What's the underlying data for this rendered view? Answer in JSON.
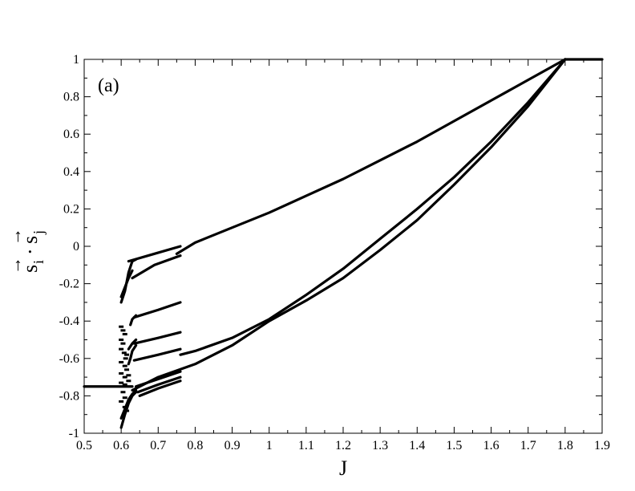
{
  "chart_data": {
    "type": "line",
    "panel_label": "(a)",
    "xlabel": "J",
    "ylabel": "s_i · s_j (vectors)",
    "ylabel_parts": {
      "s": "s",
      "i": "i",
      "dot": "·",
      "j": "j",
      "arrow": "→"
    },
    "xlim": [
      0.5,
      1.9
    ],
    "ylim": [
      -1,
      1
    ],
    "xticks": [
      "0.5",
      "0.6",
      "0.7",
      "0.8",
      "0.9",
      "1",
      "1.1",
      "1.2",
      "1.3",
      "1.4",
      "1.5",
      "1.6",
      "1.7",
      "1.8",
      "1.9"
    ],
    "yticks": [
      "-1",
      "-0.8",
      "-0.6",
      "-0.4",
      "-0.2",
      "0",
      "0.2",
      "0.4",
      "0.6",
      "0.8",
      "1"
    ],
    "grid": false,
    "legend": "none",
    "line_color": "#000000",
    "series": [
      {
        "x": [
          0.5,
          0.6,
          0.62,
          0.63
        ],
        "y": [
          -0.75,
          -0.75,
          -0.75,
          -0.75
        ]
      },
      {
        "x": [
          0.75,
          0.8,
          0.9,
          1.0,
          1.1,
          1.2,
          1.3,
          1.4,
          1.5,
          1.6,
          1.7,
          1.8,
          1.9
        ],
        "y": [
          -0.04,
          0.02,
          0.1,
          0.18,
          0.27,
          0.36,
          0.46,
          0.56,
          0.67,
          0.78,
          0.89,
          1.0,
          1.0
        ]
      },
      {
        "x": [
          0.63,
          0.7,
          0.8,
          0.9,
          1.0,
          1.1,
          1.2,
          1.3,
          1.4,
          1.5,
          1.6,
          1.7,
          1.8
        ],
        "y": [
          -0.77,
          -0.7,
          -0.63,
          -0.53,
          -0.4,
          -0.29,
          -0.17,
          -0.02,
          0.14,
          0.33,
          0.53,
          0.75,
          1.0
        ]
      },
      {
        "x": [
          0.76,
          0.8,
          0.9,
          1.0,
          1.1,
          1.2,
          1.3,
          1.4,
          1.5,
          1.6,
          1.7,
          1.8
        ],
        "y": [
          -0.58,
          -0.56,
          -0.49,
          -0.39,
          -0.26,
          -0.12,
          0.04,
          0.2,
          0.37,
          0.56,
          0.77,
          1.0
        ]
      },
      {
        "x": [
          0.63,
          0.69,
          0.76
        ],
        "y": [
          -0.17,
          -0.1,
          -0.05
        ]
      },
      {
        "x": [
          0.62,
          0.69,
          0.76
        ],
        "y": [
          -0.08,
          -0.04,
          0.0
        ]
      },
      {
        "x": [
          0.635,
          0.7,
          0.76
        ],
        "y": [
          -0.38,
          -0.34,
          -0.3
        ]
      },
      {
        "x": [
          0.635,
          0.7,
          0.76
        ],
        "y": [
          -0.52,
          -0.49,
          -0.46
        ]
      },
      {
        "x": [
          0.635,
          0.7,
          0.76
        ],
        "y": [
          -0.61,
          -0.58,
          -0.55
        ]
      },
      {
        "x": [
          0.64,
          0.7,
          0.76
        ],
        "y": [
          -0.75,
          -0.71,
          -0.67
        ]
      },
      {
        "x": [
          0.645,
          0.7,
          0.76
        ],
        "y": [
          -0.78,
          -0.74,
          -0.7
        ]
      },
      {
        "x": [
          0.65,
          0.7,
          0.76
        ],
        "y": [
          -0.8,
          -0.76,
          -0.72
        ]
      },
      {
        "x": [
          0.6,
          0.61,
          0.62,
          0.63,
          0.64
        ],
        "y": [
          -0.3,
          -0.24,
          -0.14,
          -0.08,
          -0.07
        ]
      },
      {
        "x": [
          0.6,
          0.61,
          0.62,
          0.63
        ],
        "y": [
          -0.27,
          -0.22,
          -0.17,
          -0.13
        ]
      },
      {
        "x": [
          0.6,
          0.61,
          0.62,
          0.63,
          0.64
        ],
        "y": [
          -0.97,
          -0.9,
          -0.84,
          -0.8,
          -0.78
        ]
      },
      {
        "x": [
          0.6,
          0.61,
          0.62,
          0.63,
          0.64
        ],
        "y": [
          -0.92,
          -0.87,
          -0.82,
          -0.79,
          -0.77
        ]
      },
      {
        "x": [
          0.62,
          0.63,
          0.64
        ],
        "y": [
          -0.55,
          -0.52,
          -0.5
        ]
      },
      {
        "x": [
          0.62,
          0.625,
          0.63,
          0.64
        ],
        "y": [
          -0.63,
          -0.6,
          -0.56,
          -0.53
        ]
      },
      {
        "x": [
          0.625,
          0.63,
          0.64
        ],
        "y": [
          -0.42,
          -0.39,
          -0.37
        ]
      }
    ],
    "scatter_fragments": {
      "x": [
        0.6,
        0.605,
        0.61,
        0.6,
        0.605,
        0.6,
        0.608,
        0.612,
        0.6,
        0.61,
        0.615,
        0.6,
        0.61,
        0.6,
        0.605,
        0.61,
        0.6,
        0.61,
        0.615,
        0.62,
        0.61,
        0.62,
        0.615
      ],
      "y": [
        -0.43,
        -0.45,
        -0.47,
        -0.5,
        -0.52,
        -0.55,
        -0.57,
        -0.6,
        -0.62,
        -0.64,
        -0.66,
        -0.68,
        -0.7,
        -0.73,
        -0.78,
        -0.81,
        -0.83,
        -0.86,
        -0.88,
        -0.72,
        -0.74,
        -0.69,
        -0.58
      ]
    }
  }
}
